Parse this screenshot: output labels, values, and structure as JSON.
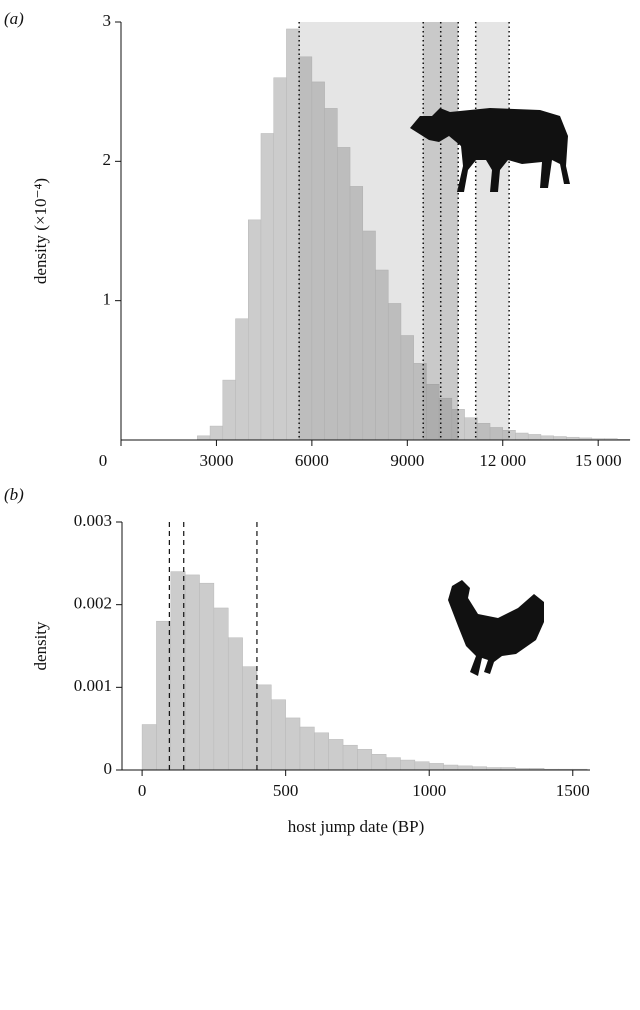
{
  "chart_data": [
    {
      "type": "histogram",
      "panel_label": "(a)",
      "ylabel": "density (×10⁻⁴)",
      "bins": [
        2400,
        2800,
        3200,
        3600,
        4000,
        4400,
        4800,
        5200,
        5600,
        6000,
        6400,
        6800,
        7200,
        7600,
        8000,
        8400,
        8800,
        9200,
        9600,
        10000,
        10400,
        10800,
        11200,
        11600,
        12000,
        12400,
        12800,
        13200,
        13600,
        14000,
        14400,
        14800,
        15200,
        15600,
        16000
      ],
      "values": [
        0.03,
        0.1,
        0.43,
        0.87,
        1.58,
        2.2,
        2.6,
        2.95,
        2.75,
        2.57,
        2.38,
        2.1,
        1.82,
        1.5,
        1.22,
        0.98,
        0.75,
        0.55,
        0.4,
        0.3,
        0.22,
        0.16,
        0.12,
        0.09,
        0.07,
        0.05,
        0.04,
        0.03,
        0.025,
        0.02,
        0.015,
        0.01,
        0.01,
        0.005
      ],
      "color": "#cccccc",
      "shaded_ranges": [
        [
          5600,
          9500
        ],
        [
          9500,
          10600
        ],
        [
          11150,
          12200
        ]
      ],
      "dotted_lines": [
        5600,
        9500,
        10050,
        10600,
        11150,
        12200
      ],
      "xlim": [
        0,
        16000
      ],
      "xticks": [
        0,
        3000,
        6000,
        9000,
        {
          "value": 12000,
          "label": "12 000"
        },
        {
          "value": 15000,
          "label": "15 000"
        }
      ],
      "ylim": [
        0,
        3
      ],
      "yticks": [
        1,
        2,
        3
      ]
    },
    {
      "type": "histogram",
      "panel_label": "(b)",
      "ylabel": "density",
      "xlabel": "host jump date (BP)",
      "bins": [
        0,
        50,
        100,
        150,
        200,
        250,
        300,
        350,
        400,
        450,
        500,
        550,
        600,
        650,
        700,
        750,
        800,
        850,
        900,
        950,
        1000,
        1050,
        1100,
        1150,
        1200,
        1250,
        1300,
        1350,
        1400,
        1450,
        1500,
        1550
      ],
      "values": [
        0.00055,
        0.0018,
        0.0024,
        0.00236,
        0.00226,
        0.00196,
        0.0016,
        0.00125,
        0.00103,
        0.00085,
        0.00063,
        0.00052,
        0.00045,
        0.00037,
        0.0003,
        0.00025,
        0.00019,
        0.00015,
        0.00012,
        0.0001,
        8e-05,
        6e-05,
        5e-05,
        4e-05,
        3e-05,
        3e-05,
        2e-05,
        2e-05,
        1e-05,
        1e-05,
        1e-05
      ],
      "color": "#cccccc",
      "dashed_lines": [
        95,
        145,
        400
      ],
      "xlim": [
        -70,
        1560
      ],
      "xticks": [
        0,
        500,
        1000,
        1500
      ],
      "ylim": [
        0,
        0.003
      ],
      "yticks": [
        0,
        0.001,
        0.002,
        0.003
      ]
    }
  ]
}
